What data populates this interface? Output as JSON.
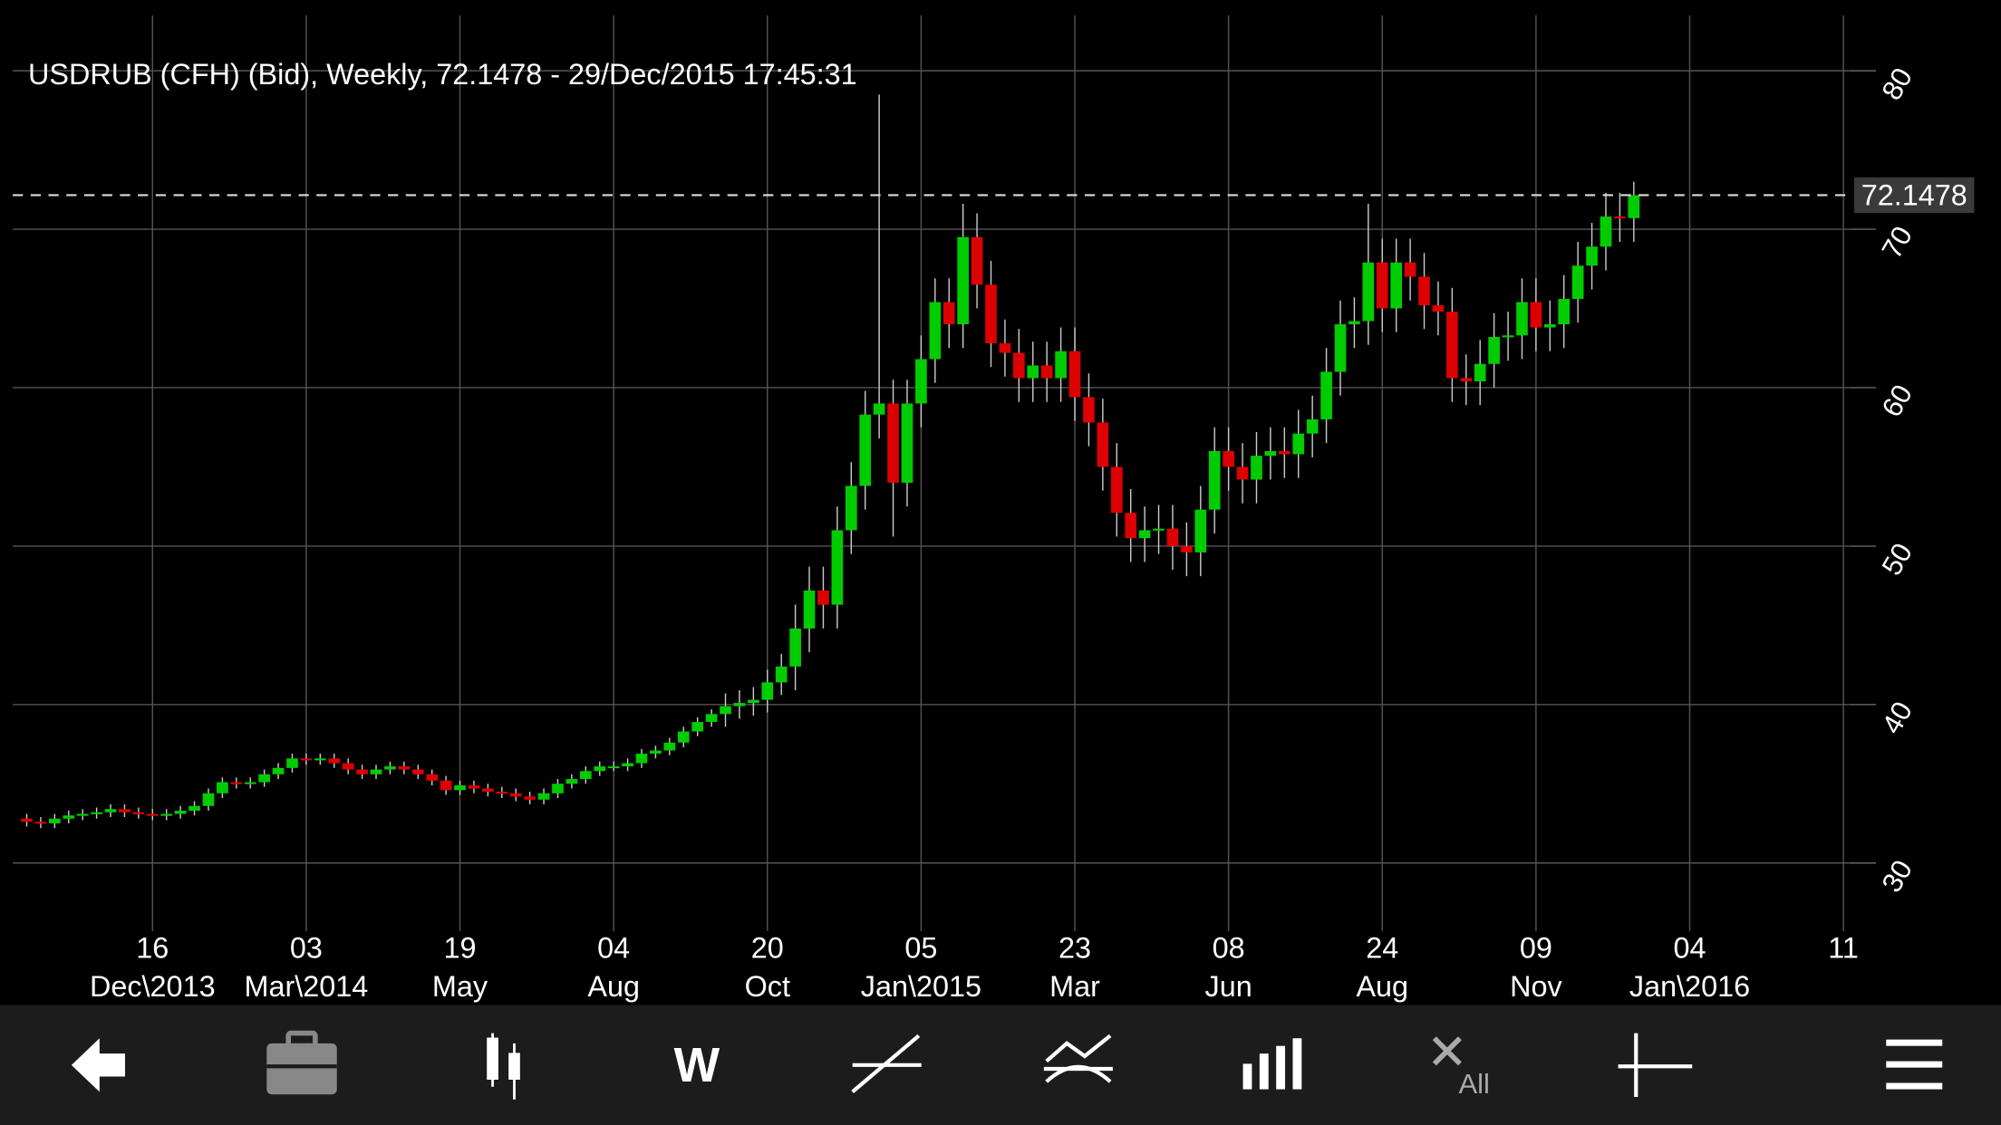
{
  "chart_data": {
    "type": "candlestick",
    "title": "USDRUB (CFH) (Bid), Weekly, 72.1478 - 29/Dec/2015 17:45:31",
    "up_color": "#00cc00",
    "down_color": "#dd0000",
    "grid": true,
    "last_price": 72.1478,
    "xlim": [
      -10,
      121.5
    ],
    "ylim": [
      25.7,
      83.5
    ],
    "yticks": [
      30,
      40,
      50,
      60,
      70,
      80
    ],
    "xticks": [
      {
        "value": 0,
        "label": "16",
        "sublabel": "Dec\\2013"
      },
      {
        "value": 11,
        "label": "03",
        "sublabel": "Mar\\2014"
      },
      {
        "value": 22,
        "label": "19",
        "sublabel": "May"
      },
      {
        "value": 33,
        "label": "04",
        "sublabel": "Aug"
      },
      {
        "value": 44,
        "label": "20",
        "sublabel": "Oct"
      },
      {
        "value": 55,
        "label": "05",
        "sublabel": "Jan\\2015"
      },
      {
        "value": 66,
        "label": "23",
        "sublabel": "Mar"
      },
      {
        "value": 77,
        "label": "08",
        "sublabel": "Jun"
      },
      {
        "value": 88,
        "label": "24",
        "sublabel": "Aug"
      },
      {
        "value": 99,
        "label": "09",
        "sublabel": "Nov"
      },
      {
        "value": 110,
        "label": "04",
        "sublabel": "Jan\\2016"
      },
      {
        "value": 121,
        "label": "11"
      }
    ],
    "x": [
      -9,
      -8,
      -7,
      -6,
      -5,
      -4,
      -3,
      -2,
      -1,
      0,
      1,
      2,
      3,
      4,
      5,
      6,
      7,
      8,
      9,
      10,
      11,
      12,
      13,
      14,
      15,
      16,
      17,
      18,
      19,
      20,
      21,
      22,
      23,
      24,
      25,
      26,
      27,
      28,
      29,
      30,
      31,
      32,
      33,
      34,
      35,
      36,
      37,
      38,
      39,
      40,
      41,
      42,
      43,
      44,
      45,
      46,
      47,
      48,
      49,
      50,
      51,
      52,
      53,
      54,
      55,
      56,
      57,
      58,
      59,
      60,
      61,
      62,
      63,
      64,
      65,
      66,
      67,
      68,
      69,
      70,
      71,
      72,
      73,
      74,
      75,
      76,
      77,
      78,
      79,
      80,
      81,
      82,
      83,
      84,
      85,
      86,
      87,
      88,
      89,
      90,
      91,
      92,
      93,
      94,
      95,
      96,
      97,
      98,
      99,
      100,
      101,
      102,
      103,
      104,
      105,
      106
    ],
    "open": [
      32.8,
      32.6,
      32.5,
      32.8,
      33.0,
      33.1,
      33.2,
      33.4,
      33.2,
      33.1,
      33.0,
      33.1,
      33.3,
      33.6,
      34.4,
      35.1,
      35.0,
      35.1,
      35.6,
      36.0,
      36.6,
      36.5,
      36.6,
      36.3,
      35.9,
      35.6,
      35.9,
      36.1,
      35.9,
      35.6,
      35.2,
      34.6,
      34.9,
      34.7,
      34.5,
      34.4,
      34.2,
      34.0,
      34.4,
      35.0,
      35.3,
      35.8,
      36.1,
      36.1,
      36.3,
      36.9,
      37.1,
      37.6,
      38.3,
      38.9,
      39.4,
      39.9,
      40.1,
      40.3,
      41.4,
      42.4,
      44.8,
      47.2,
      46.3,
      51.0,
      53.8,
      58.3,
      59.0,
      54.0,
      59.0,
      61.8,
      65.4,
      64.0,
      69.5,
      66.5,
      62.8,
      62.2,
      60.6,
      61.4,
      60.6,
      62.3,
      59.4,
      57.8,
      55.0,
      52.1,
      50.5,
      51.0,
      51.1,
      50.0,
      49.6,
      52.3,
      56.0,
      55.0,
      54.2,
      55.7,
      56.0,
      55.8,
      57.1,
      58.0,
      61.0,
      64.0,
      64.2,
      67.9,
      65.0,
      67.9,
      67.0,
      65.2,
      64.8,
      60.6,
      60.4,
      61.5,
      63.2,
      63.3,
      65.4,
      63.8,
      64.0,
      65.6,
      67.7,
      68.9,
      70.8,
      70.7
    ],
    "high": [
      33.1,
      32.9,
      33.1,
      33.3,
      33.4,
      33.5,
      33.7,
      33.7,
      33.5,
      33.4,
      33.4,
      33.6,
      33.9,
      34.7,
      35.4,
      35.4,
      35.4,
      35.9,
      36.3,
      36.9,
      36.9,
      36.9,
      36.9,
      36.6,
      36.2,
      36.2,
      36.4,
      36.4,
      36.2,
      35.9,
      35.5,
      35.2,
      35.2,
      35.0,
      34.8,
      34.7,
      34.5,
      34.7,
      35.3,
      35.6,
      36.1,
      36.4,
      36.4,
      36.6,
      37.2,
      37.4,
      37.9,
      38.6,
      39.2,
      39.7,
      40.7,
      40.9,
      41.1,
      42.2,
      43.2,
      46.3,
      48.7,
      48.7,
      52.5,
      55.3,
      59.8,
      78.5,
      60.5,
      60.5,
      63.3,
      66.9,
      66.9,
      71.6,
      71.0,
      68.0,
      64.3,
      63.7,
      62.9,
      62.9,
      63.8,
      63.8,
      60.9,
      59.3,
      56.5,
      53.6,
      52.5,
      52.6,
      52.6,
      51.5,
      53.8,
      57.5,
      57.5,
      56.5,
      57.2,
      57.5,
      57.5,
      58.6,
      59.5,
      62.5,
      65.5,
      65.7,
      71.6,
      69.4,
      69.4,
      69.4,
      68.5,
      66.7,
      66.3,
      62.1,
      63.0,
      64.7,
      64.8,
      66.9,
      66.9,
      65.5,
      67.1,
      69.2,
      70.4,
      72.3,
      72.3,
      73.0
    ],
    "low": [
      32.3,
      32.2,
      32.2,
      32.5,
      32.7,
      32.8,
      32.9,
      32.9,
      32.8,
      32.7,
      32.7,
      32.8,
      33.0,
      33.3,
      34.1,
      34.7,
      34.7,
      34.8,
      35.3,
      35.7,
      36.2,
      36.2,
      36.0,
      35.6,
      35.3,
      35.3,
      35.6,
      35.6,
      35.3,
      34.9,
      34.3,
      34.3,
      34.4,
      34.2,
      34.1,
      33.9,
      33.7,
      33.7,
      34.1,
      34.7,
      35.0,
      35.5,
      35.8,
      35.8,
      36.0,
      36.6,
      36.8,
      37.3,
      38.0,
      38.6,
      38.6,
      39.1,
      39.3,
      39.5,
      40.6,
      40.9,
      43.3,
      44.8,
      44.8,
      49.5,
      52.3,
      56.8,
      50.6,
      52.5,
      57.5,
      60.3,
      62.5,
      62.5,
      65.0,
      61.3,
      60.7,
      59.1,
      59.1,
      59.1,
      59.1,
      57.9,
      56.3,
      53.5,
      50.6,
      49.0,
      49.0,
      49.5,
      48.5,
      48.1,
      48.1,
      50.8,
      53.5,
      52.7,
      52.7,
      54.2,
      54.3,
      54.3,
      55.6,
      56.5,
      59.5,
      62.5,
      62.7,
      63.5,
      63.5,
      65.5,
      63.7,
      63.3,
      59.1,
      58.9,
      58.9,
      60.0,
      61.7,
      61.8,
      62.3,
      62.3,
      62.5,
      64.1,
      66.2,
      67.4,
      69.2,
      69.2
    ],
    "close": [
      32.6,
      32.5,
      32.8,
      33.0,
      33.1,
      33.2,
      33.4,
      33.2,
      33.1,
      33.0,
      33.1,
      33.3,
      33.6,
      34.4,
      35.1,
      35.0,
      35.1,
      35.6,
      36.0,
      36.6,
      36.5,
      36.6,
      36.3,
      35.9,
      35.6,
      35.9,
      36.1,
      35.9,
      35.6,
      35.2,
      34.6,
      34.9,
      34.7,
      34.5,
      34.4,
      34.2,
      34.0,
      34.4,
      35.0,
      35.3,
      35.8,
      36.1,
      36.1,
      36.3,
      36.9,
      37.1,
      37.6,
      38.3,
      38.9,
      39.4,
      39.9,
      40.1,
      40.3,
      41.4,
      42.4,
      44.8,
      47.2,
      46.3,
      51.0,
      53.8,
      58.3,
      59.0,
      54.0,
      59.0,
      61.8,
      65.4,
      64.0,
      69.5,
      66.5,
      62.8,
      62.2,
      60.6,
      61.4,
      60.6,
      62.3,
      59.4,
      57.8,
      55.0,
      52.1,
      50.5,
      51.0,
      51.1,
      50.0,
      49.6,
      52.3,
      56.0,
      55.0,
      54.2,
      55.7,
      56.0,
      55.8,
      57.1,
      58.0,
      61.0,
      64.0,
      64.2,
      67.9,
      65.0,
      67.9,
      67.0,
      65.2,
      64.8,
      60.6,
      60.4,
      61.5,
      63.2,
      63.3,
      65.4,
      63.8,
      64.0,
      65.6,
      67.7,
      68.9,
      70.8,
      70.7,
      72.1478
    ]
  },
  "toolbar": {
    "period": "W",
    "remove_all": "All"
  }
}
